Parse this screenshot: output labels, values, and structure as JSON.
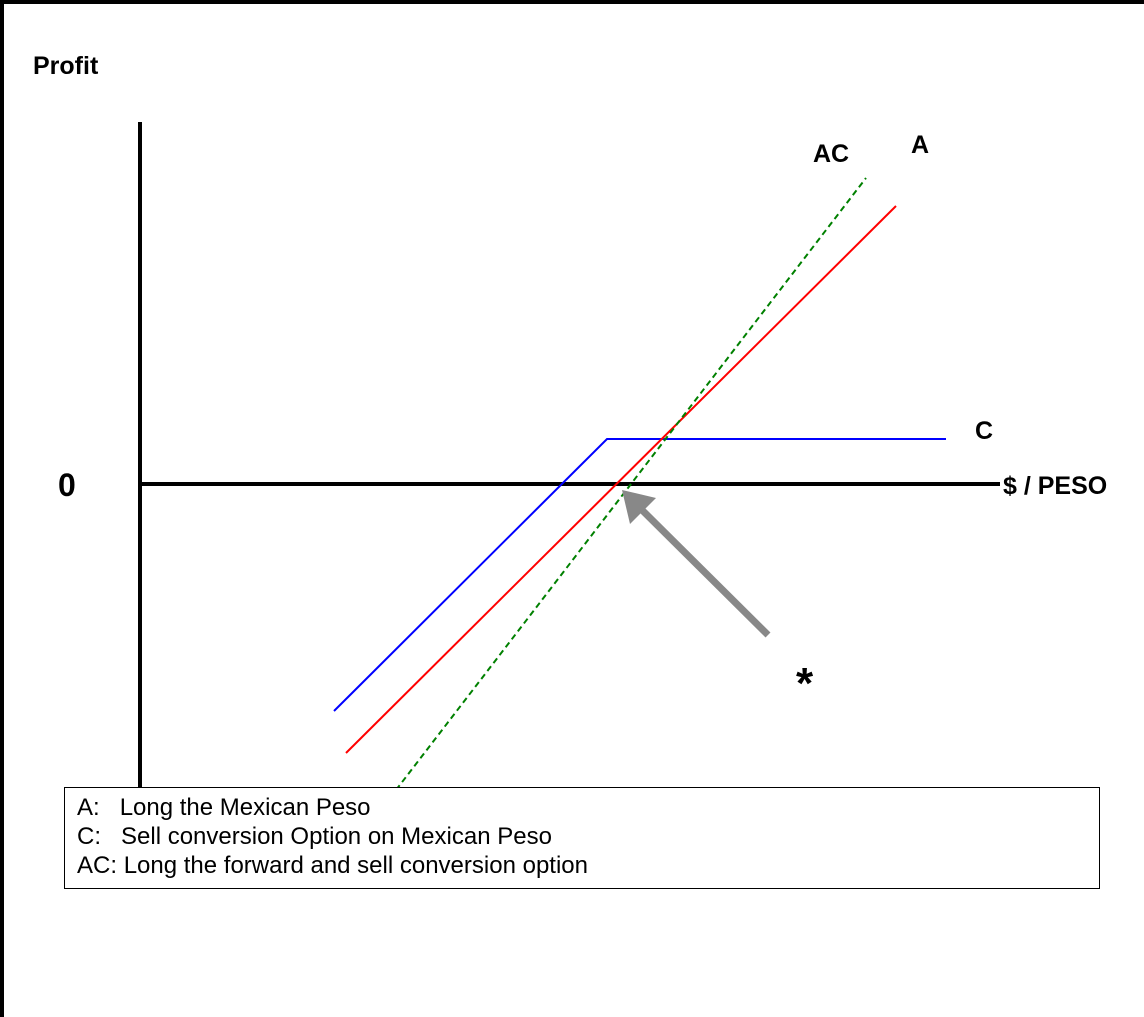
{
  "axes": {
    "y_label": "Profit",
    "x_label": "$ / PESO",
    "origin_label": "0"
  },
  "curves": {
    "A": {
      "label": "A",
      "color": "#ff0000",
      "style": "solid"
    },
    "C": {
      "label": "C",
      "color": "#0000ff",
      "style": "solid"
    },
    "AC": {
      "label": "AC",
      "color": "#008000",
      "style": "dashed"
    }
  },
  "annotation": {
    "marker": "*",
    "arrow_color": "#888888"
  },
  "legend": {
    "items": [
      {
        "key": "A:",
        "text": "Long the Mexican Peso"
      },
      {
        "key": "C:",
        "text": "Sell conversion Option on Mexican Peso"
      },
      {
        "key": "AC:",
        "text": "Long the forward and sell conversion option"
      }
    ]
  }
}
